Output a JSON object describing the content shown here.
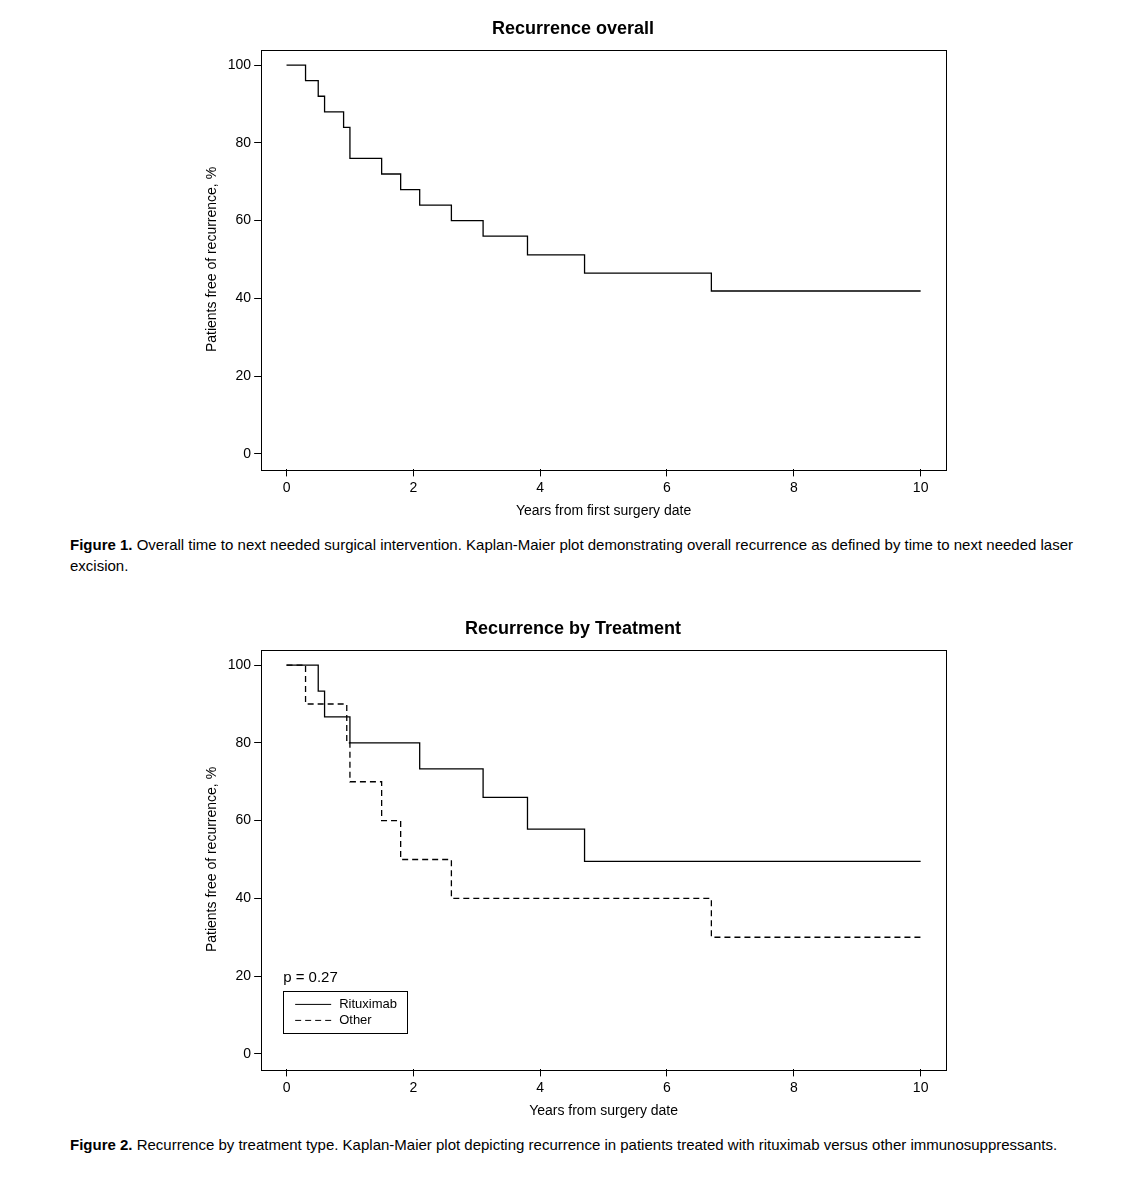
{
  "chart_data": [
    {
      "type": "line",
      "title": "Recurrence overall",
      "x_label": "Years from first surgery date",
      "y_label": "Patients free of recurrence, %",
      "caption_label": "Figure 1.",
      "caption": "Overall time to next needed surgical intervention. Kaplan-Maier plot demonstrating overall recurrence as defined by time to next needed laser excision.",
      "xlim": [
        -0.4,
        10.4
      ],
      "xticks": [
        0,
        2,
        4,
        6,
        8,
        10
      ],
      "ylim": [
        -4,
        104
      ],
      "yticks": [
        0,
        20,
        40,
        60,
        80,
        100
      ],
      "grid": false,
      "series": [
        {
          "name": "Overall",
          "color": "#000000",
          "line_style": "solid",
          "x": [
            0,
            0.3,
            0.5,
            0.6,
            0.9,
            1.0,
            1.5,
            1.8,
            2.1,
            2.6,
            3.1,
            3.8,
            4.7,
            6.7,
            10
          ],
          "values": [
            100,
            96,
            92,
            88,
            84,
            76,
            72,
            68,
            64,
            60,
            56,
            51.2,
            46.5,
            41.9,
            41.9
          ]
        }
      ]
    },
    {
      "type": "line",
      "title": "Recurrence by Treatment",
      "x_label": "Years from surgery date",
      "y_label": "Patients free of recurrence, %",
      "caption_label": "Figure 2.",
      "caption": "Recurrence by treatment type. Kaplan-Maier plot depicting recurrence in patients treated with rituximab versus other immunosuppressants.",
      "annotation": "p = 0.27",
      "legend": "bottom left",
      "xlim": [
        -0.4,
        10.4
      ],
      "xticks": [
        0,
        2,
        4,
        6,
        8,
        10
      ],
      "ylim": [
        -4,
        104
      ],
      "yticks": [
        0,
        20,
        40,
        60,
        80,
        100
      ],
      "grid": false,
      "series": [
        {
          "name": "Rituximab",
          "color": "#000000",
          "line_style": "solid",
          "x": [
            0,
            0.5,
            0.6,
            1.0,
            2.1,
            3.1,
            3.8,
            4.7,
            10
          ],
          "values": [
            100,
            93.3,
            86.7,
            80,
            73.3,
            66,
            57.8,
            49.5,
            49.5
          ]
        },
        {
          "name": "Other",
          "color": "#000000",
          "line_style": "dashed",
          "x": [
            0,
            0.3,
            0.95,
            1.0,
            1.5,
            1.8,
            2.6,
            6.7,
            10
          ],
          "values": [
            100,
            90,
            80,
            70,
            60,
            50,
            40,
            30,
            30
          ]
        }
      ]
    }
  ]
}
